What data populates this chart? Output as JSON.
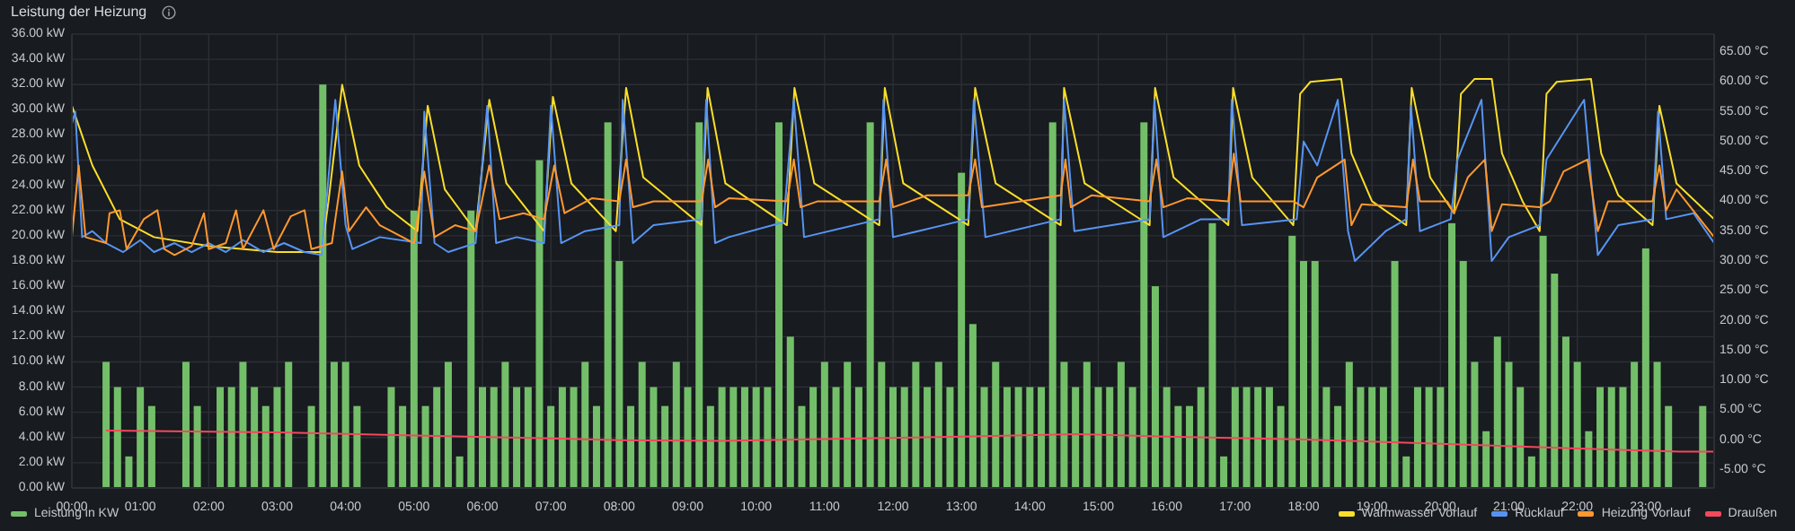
{
  "chart_data": {
    "type": "bar",
    "title": "Leistung der Heizung",
    "legend": "bottom",
    "grid": true,
    "x": [
      0,
      0.167,
      0.333,
      0.5,
      0.667,
      0.833,
      1,
      1.167,
      1.333,
      1.5,
      1.667,
      1.833,
      2,
      2.167,
      2.333,
      2.5,
      2.667,
      2.833,
      3,
      3.167,
      3.333,
      3.5,
      3.667,
      3.833,
      4,
      4.167,
      4.333,
      4.5,
      4.667,
      4.833,
      5,
      5.167,
      5.333,
      5.5,
      5.667,
      5.833,
      6,
      6.167,
      6.333,
      6.5,
      6.667,
      6.833,
      7,
      7.167,
      7.333,
      7.5,
      7.667,
      7.833,
      8,
      8.167,
      8.333,
      8.5,
      8.667,
      8.833,
      9,
      9.167,
      9.333,
      9.5,
      9.667,
      9.833,
      10,
      10.167,
      10.333,
      10.5,
      10.667,
      10.833,
      11,
      11.167,
      11.333,
      11.5,
      11.667,
      11.833,
      12,
      12.167,
      12.333,
      12.5,
      12.667,
      12.833,
      13,
      13.167,
      13.333,
      13.5,
      13.667,
      13.833,
      14,
      14.167,
      14.333,
      14.5,
      14.667,
      14.833,
      15,
      15.167,
      15.333,
      15.5,
      15.667,
      15.833,
      16,
      16.167,
      16.333,
      16.5,
      16.667,
      16.833,
      17,
      17.167,
      17.333,
      17.5,
      17.667,
      17.833,
      18,
      18.167,
      18.333,
      18.5,
      18.667,
      18.833,
      19,
      19.167,
      19.333,
      19.5,
      19.667,
      19.833,
      20,
      20.167,
      20.333,
      20.5,
      20.667,
      20.833,
      21,
      21.167,
      21.333,
      21.5,
      21.667,
      21.833,
      22,
      22.167,
      22.333,
      22.5,
      22.667,
      22.833,
      23,
      23.167,
      23.333,
      23.5,
      23.667,
      23.833
    ],
    "xlim": [
      0,
      24
    ],
    "xticks": [
      {
        "value": 0,
        "label": "00:00"
      },
      {
        "value": 1,
        "label": "01:00"
      },
      {
        "value": 2,
        "label": "02:00"
      },
      {
        "value": 3,
        "label": "03:00"
      },
      {
        "value": 4,
        "label": "04:00"
      },
      {
        "value": 5,
        "label": "05:00"
      },
      {
        "value": 6,
        "label": "06:00"
      },
      {
        "value": 7,
        "label": "07:00"
      },
      {
        "value": 8,
        "label": "08:00"
      },
      {
        "value": 9,
        "label": "09:00"
      },
      {
        "value": 10,
        "label": "10:00"
      },
      {
        "value": 11,
        "label": "11:00"
      },
      {
        "value": 12,
        "label": "12:00"
      },
      {
        "value": 13,
        "label": "13:00"
      },
      {
        "value": 14,
        "label": "14:00"
      },
      {
        "value": 15,
        "label": "15:00"
      },
      {
        "value": 16,
        "label": "16:00"
      },
      {
        "value": 17,
        "label": "17:00"
      },
      {
        "value": 18,
        "label": "18:00"
      },
      {
        "value": 19,
        "label": "19:00"
      },
      {
        "value": 20,
        "label": "20:00"
      },
      {
        "value": 21,
        "label": "21:00"
      },
      {
        "value": 22,
        "label": "22:00"
      },
      {
        "value": 23,
        "label": "23:00"
      }
    ],
    "ylim": [
      0,
      36
    ],
    "yticks": [
      {
        "value": 0,
        "label": "0.00 kW"
      },
      {
        "value": 2,
        "label": "2.00 kW"
      },
      {
        "value": 4,
        "label": "4.00 kW"
      },
      {
        "value": 6,
        "label": "6.00 kW"
      },
      {
        "value": 8,
        "label": "8.00 kW"
      },
      {
        "value": 10,
        "label": "10.00 kW"
      },
      {
        "value": 12,
        "label": "12.00 kW"
      },
      {
        "value": 14,
        "label": "14.00 kW"
      },
      {
        "value": 16,
        "label": "16.00 kW"
      },
      {
        "value": 18,
        "label": "18.00 kW"
      },
      {
        "value": 20,
        "label": "20.00 kW"
      },
      {
        "value": 22,
        "label": "22.00 kW"
      },
      {
        "value": 24,
        "label": "24.00 kW"
      },
      {
        "value": 26,
        "label": "26.00 kW"
      },
      {
        "value": 28,
        "label": "28.00 kW"
      },
      {
        "value": 30,
        "label": "30.00 kW"
      },
      {
        "value": 32,
        "label": "32.00 kW"
      },
      {
        "value": 34,
        "label": "34.00 kW"
      },
      {
        "value": 36,
        "label": "36.00 kW"
      }
    ],
    "y2lim": [
      -8,
      68
    ],
    "y2ticks": [
      {
        "value": -5,
        "label": "-5.00 °C"
      },
      {
        "value": 0,
        "label": "0.00 °C"
      },
      {
        "value": 5,
        "label": "5.00 °C"
      },
      {
        "value": 10,
        "label": "10.00 °C"
      },
      {
        "value": 15,
        "label": "15.00 °C"
      },
      {
        "value": 20,
        "label": "20.00 °C"
      },
      {
        "value": 25,
        "label": "25.00 °C"
      },
      {
        "value": 30,
        "label": "30.00 °C"
      },
      {
        "value": 35,
        "label": "35.00 °C"
      },
      {
        "value": 40,
        "label": "40.00 °C"
      },
      {
        "value": 45,
        "label": "45.00 °C"
      },
      {
        "value": 50,
        "label": "50.00 °C"
      },
      {
        "value": 55,
        "label": "55.00 °C"
      },
      {
        "value": 60,
        "label": "60.00 °C"
      },
      {
        "value": 65,
        "label": "65.00 °C"
      }
    ],
    "series": [
      {
        "name": "Leistung in KW",
        "color": "#73bf69",
        "values": [
          0,
          0,
          0,
          10,
          8,
          2.5,
          8,
          6.5,
          0,
          0,
          10,
          6.5,
          0,
          8,
          8,
          10,
          8,
          6.5,
          8,
          10,
          0,
          6.5,
          32,
          10,
          10,
          6.5,
          0,
          0,
          8,
          6.5,
          22,
          6.5,
          8,
          10,
          2.5,
          22,
          8,
          8,
          10,
          8,
          8,
          26,
          6.5,
          8,
          8,
          10,
          6.5,
          29,
          18,
          6.5,
          10,
          8,
          6.5,
          10,
          8,
          29,
          6.5,
          8,
          8,
          8,
          8,
          8,
          29,
          12,
          6.5,
          8,
          10,
          8,
          10,
          8,
          29,
          10,
          8,
          8,
          10,
          8,
          10,
          8,
          25,
          13,
          8,
          10,
          8,
          8,
          8,
          8,
          29,
          10,
          8,
          10,
          8,
          8,
          10,
          8,
          29,
          16,
          8,
          6.5,
          6.5,
          8,
          21,
          2.5,
          8,
          8,
          8,
          8,
          6.5,
          20,
          18,
          18,
          8,
          6.5,
          10,
          8,
          8,
          8,
          18,
          2.5,
          8,
          8,
          8,
          21,
          18,
          10,
          4.5,
          12,
          10,
          8,
          2.5,
          20,
          17,
          12,
          10,
          4.5,
          8,
          8,
          8,
          10,
          19,
          10,
          6.5,
          0,
          0,
          6.5
        ]
      },
      {
        "name": "Warmwasser Vorlauf",
        "type": "line",
        "axis": "y2",
        "color": "#fade2a",
        "x": [
          0,
          0.3,
          0.7,
          1.2,
          2,
          3,
          3.65,
          3.75,
          3.95,
          4.2,
          4.6,
          5.05,
          5.2,
          5.45,
          5.9,
          6.1,
          6.35,
          6.9,
          7.03,
          7.3,
          7.95,
          8.1,
          8.35,
          9.2,
          9.29,
          9.55,
          10.45,
          10.56,
          10.85,
          11.8,
          11.88,
          12.15,
          13.1,
          13.2,
          13.5,
          14.45,
          14.5,
          14.8,
          15.75,
          15.83,
          16.1,
          16.9,
          16.97,
          17.25,
          17.85,
          17.95,
          18.1,
          18.55,
          18.7,
          19,
          19.5,
          19.58,
          19.85,
          20.2,
          20.3,
          20.5,
          20.75,
          20.9,
          21.2,
          21.45,
          21.55,
          21.7,
          22.2,
          22.35,
          22.6,
          23.1,
          23.2,
          23.45,
          24
        ],
        "values": [
          56,
          46,
          37,
          34,
          32.5,
          31.5,
          31.5,
          40,
          59.5,
          46,
          39,
          35,
          56,
          42,
          35,
          57,
          43,
          35,
          57.5,
          43,
          35,
          59,
          44,
          36,
          59,
          43,
          36,
          59,
          43,
          36,
          59,
          43,
          36,
          59,
          43,
          36,
          59,
          43,
          36,
          59,
          44,
          36,
          59,
          44,
          36,
          58,
          60,
          60.5,
          48,
          40,
          36,
          59,
          44,
          38,
          58,
          60.5,
          60.5,
          48,
          40,
          35,
          58,
          60,
          60.5,
          48,
          41,
          36,
          56,
          43,
          37
        ]
      },
      {
        "name": "Rücklauf",
        "type": "line",
        "axis": "y2",
        "color": "#5794f2",
        "x": [
          0,
          0.05,
          0.15,
          0.3,
          0.5,
          0.75,
          1,
          1.2,
          1.5,
          1.75,
          2,
          2.25,
          2.5,
          2.8,
          3.1,
          3.4,
          3.65,
          3.85,
          4,
          4.1,
          4.5,
          5.1,
          5.15,
          5.3,
          5.5,
          5.9,
          6.07,
          6.2,
          6.5,
          6.9,
          7,
          7.15,
          7.5,
          8,
          8.05,
          8.2,
          8.5,
          9.2,
          9.27,
          9.4,
          9.6,
          10.4,
          10.55,
          10.7,
          11.8,
          11.86,
          12,
          13.1,
          13.18,
          13.35,
          14.45,
          14.5,
          14.65,
          15.75,
          15.82,
          15.95,
          16.5,
          16.9,
          16.95,
          17.1,
          17.9,
          18,
          18.2,
          18.5,
          18.65,
          18.75,
          19.2,
          19.5,
          19.57,
          19.7,
          20.15,
          20.25,
          20.6,
          20.75,
          21,
          21.45,
          21.55,
          22.1,
          22.3,
          22.6,
          23.1,
          23.18,
          23.3,
          23.7,
          24
        ],
        "values": [
          53,
          55,
          34,
          35,
          33,
          31.5,
          33.5,
          31.5,
          33,
          31.5,
          33,
          31.5,
          33.5,
          31.5,
          33,
          31.5,
          31,
          57,
          36,
          32,
          34,
          33,
          55,
          33,
          31.5,
          33,
          56,
          33,
          34,
          33,
          56,
          33,
          35,
          36,
          57,
          33,
          36,
          37,
          57,
          33,
          34,
          36.5,
          57,
          34,
          37,
          57,
          34,
          37,
          57,
          34,
          37,
          57,
          35,
          37,
          57,
          34,
          37,
          37,
          57,
          36,
          37,
          50,
          46,
          57,
          35,
          30,
          35,
          37,
          56,
          35,
          37,
          47,
          57,
          30,
          34,
          36,
          47,
          57,
          31,
          36,
          37,
          55,
          37,
          38,
          33
        ]
      },
      {
        "name": "Heizung Vorlauf",
        "type": "line",
        "axis": "y2",
        "color": "#ff9830",
        "x": [
          0,
          0.1,
          0.2,
          0.5,
          0.55,
          0.7,
          0.8,
          1.05,
          1.25,
          1.35,
          1.5,
          1.75,
          1.93,
          2,
          2.25,
          2.4,
          2.5,
          2.8,
          2.95,
          3.2,
          3.4,
          3.5,
          3.8,
          3.95,
          4.05,
          4.3,
          4.5,
          5,
          5.15,
          5.3,
          5.6,
          5.9,
          6.1,
          6.25,
          6.6,
          6.9,
          7.05,
          7.2,
          7.6,
          8,
          8.1,
          8.2,
          8.5,
          9.2,
          9.3,
          9.4,
          9.6,
          10.45,
          10.55,
          10.65,
          10.9,
          11.8,
          11.9,
          12,
          12.5,
          13.1,
          13.2,
          13.3,
          14.45,
          14.52,
          14.6,
          14.9,
          15.75,
          15.85,
          15.95,
          16.3,
          16.9,
          16.98,
          17.08,
          17.85,
          18,
          18.2,
          18.6,
          18.7,
          18.85,
          19.5,
          19.6,
          19.7,
          20.1,
          20.2,
          20.4,
          20.65,
          20.75,
          20.9,
          21.45,
          21.6,
          21.8,
          22.15,
          22.3,
          22.45,
          23.1,
          23.2,
          23.3,
          23.45,
          24
        ],
        "values": [
          34,
          46,
          34,
          33,
          38,
          38.5,
          32,
          37,
          38.5,
          32,
          31,
          32.5,
          38,
          32,
          33,
          38.5,
          32,
          38.5,
          32,
          37.5,
          38.5,
          32,
          33,
          45,
          35,
          39,
          36,
          33,
          45,
          34,
          36,
          35,
          46,
          37,
          38,
          37,
          46,
          38,
          40.5,
          40,
          47,
          39,
          40,
          40,
          47,
          39,
          40.5,
          40,
          47,
          39,
          40,
          40,
          47,
          39,
          41,
          41,
          47,
          39,
          41,
          47,
          39,
          41,
          40,
          47,
          39,
          40.5,
          40,
          48,
          40,
          40,
          39,
          44,
          47,
          36,
          39.5,
          39,
          47,
          40,
          40,
          38,
          44,
          47,
          35,
          39.5,
          39,
          40,
          45,
          47,
          35,
          40,
          40,
          46,
          38.5,
          42,
          34
        ]
      },
      {
        "name": "Draußen",
        "type": "line",
        "axis": "y2",
        "color": "#f2495c",
        "x": [
          0.5,
          3,
          5,
          7,
          8,
          9.5,
          13,
          14.7,
          16,
          18,
          20,
          22,
          23.5,
          24
        ],
        "values": [
          1.6,
          1.3,
          0.8,
          0.3,
          0,
          -0.1,
          0.6,
          1,
          0.6,
          0.1,
          -0.6,
          -1.4,
          -1.9,
          -1.9
        ]
      }
    ]
  }
}
